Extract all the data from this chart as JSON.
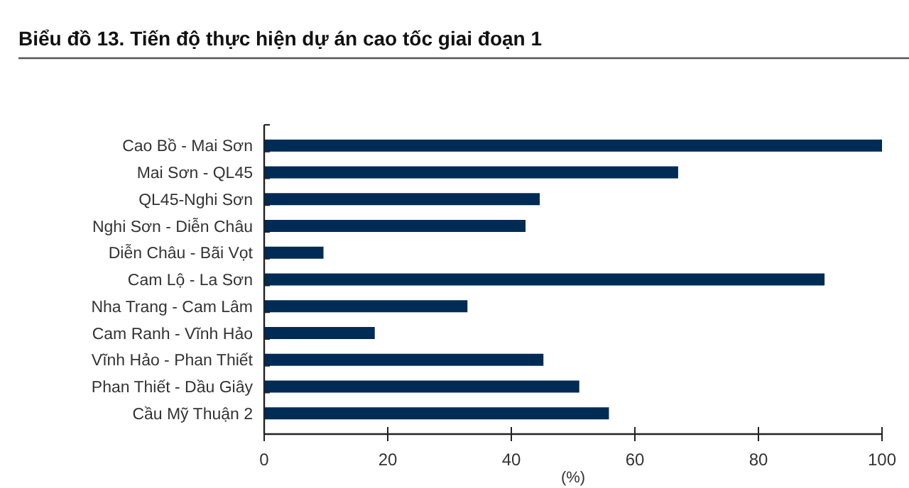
{
  "chart_data": {
    "type": "bar",
    "orientation": "horizontal",
    "title": "Biểu đồ 13. Tiến độ thực hiện dự án cao tốc giai đoạn 1",
    "xlabel": "(%)",
    "categories": [
      "Cao Bồ - Mai Sơn",
      "Mai Sơn - QL45",
      "QL45-Nghi Sơn",
      "Nghi Sơn - Diễn Châu",
      "Diễn Châu - Bãi Vọt",
      "Cam Lộ - La Sơn",
      "Nha Trang - Cam Lâm",
      "Cam Ranh - Vĩnh Hảo",
      "Vĩnh Hảo - Phan Thiết",
      "Phan Thiết - Dầu Giây",
      "Cầu Mỹ Thuận 2"
    ],
    "values": [
      100,
      67,
      44.6,
      42.3,
      9.6,
      90.7,
      32.9,
      17.9,
      45.2,
      51,
      55.8
    ],
    "color": "#002b55",
    "xlim": [
      0,
      100
    ],
    "xticks": [
      0,
      20,
      40,
      60,
      80,
      100
    ],
    "grid": false
  }
}
